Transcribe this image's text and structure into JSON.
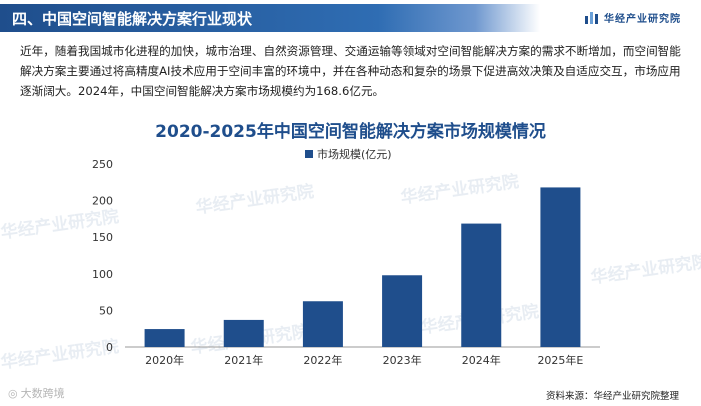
{
  "header": {
    "title": "四、中国空间智能解决方案行业现状",
    "brand": "华经产业研究院"
  },
  "intro": "近年，随着我国城市化进程的加快，城市治理、自然资源管理、交通运输等领域对空间智能解决方案的需求不断增加，而空间智能解决方案主要通过将高精度AI技术应用于空间丰富的环境中，并在各种动态和复杂的场景下促进高效决策及自适应交互，市场应用逐渐阔大。2024年，中国空间智能解决方案市场规模约为168.6亿元。",
  "chart_data": {
    "type": "bar",
    "title": "2020-2025年中国空间智能解决方案市场规模情况",
    "categories": [
      "2020年",
      "2021年",
      "2022年",
      "2023年",
      "2024年",
      "2025年E"
    ],
    "series": [
      {
        "name": "市场规模(亿元)",
        "values": [
          24.5,
          37,
          62.5,
          98,
          168.6,
          218
        ]
      }
    ],
    "ylim": [
      0,
      250
    ],
    "yticks": [
      0,
      50,
      100,
      150,
      200,
      250
    ],
    "legend_position": "top",
    "grid": false,
    "bar_color": "#1f4e8c"
  },
  "source": "资料来源：华经产业研究院整理",
  "watermark": "华经产业研究院",
  "bottom_watermark": "大数跨境"
}
